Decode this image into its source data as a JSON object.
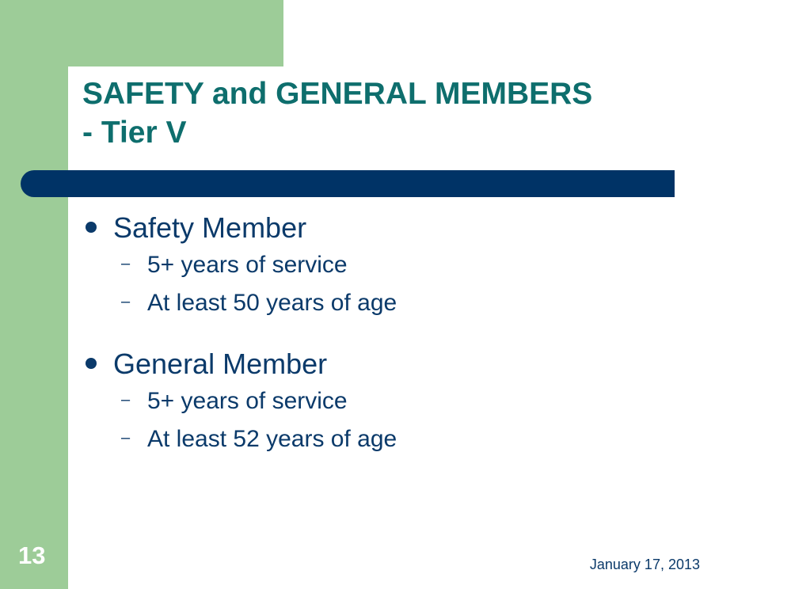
{
  "slide": {
    "title": "SAFETY and GENERAL MEMBERS\n - Tier V",
    "sections": [
      {
        "heading": "Safety Member",
        "items": [
          "5+ years of service",
          "At least 50 years of age"
        ]
      },
      {
        "heading": "General Member",
        "items": [
          "5+ years of service",
          "At least 52 years of age"
        ]
      }
    ],
    "slide_number": "13",
    "date": "January 17, 2013",
    "sub_bullet": "–"
  },
  "colors": {
    "green": "#9dcc98",
    "title_teal": "#0e6e6d",
    "bar_navy": "#003366",
    "text_navy": "#0b3a6a"
  }
}
